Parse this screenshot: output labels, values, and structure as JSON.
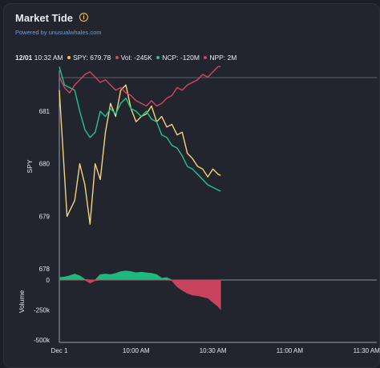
{
  "widget": {
    "title": "Market Tide",
    "subtitle": "Powered by unusualwhales.com"
  },
  "legend": {
    "datetime": "12/01",
    "time": "10:32 AM",
    "spy": "SPY: 679.78",
    "vol": "Vol: -245K",
    "ncp": "NCP: -120M",
    "npp": "NPP: 2M"
  },
  "colors": {
    "spy": "#f5d37a",
    "ncp": "#20c58e",
    "npp": "#d64566",
    "vol_pos": "#1fb97f",
    "vol_neg": "#c94260",
    "spy_dot": "#f5c542",
    "vol_dot": "#d64566"
  },
  "chart_data": {
    "type": "line",
    "xlabel": "",
    "x_ticks": [
      "Dec 1",
      "10:00 AM",
      "10:30 AM",
      "11:00 AM",
      "11:30 AM"
    ],
    "price_panel": {
      "ylabel": "SPY",
      "y_ticks": [
        678,
        679,
        680,
        681
      ],
      "ylim": [
        678,
        681.9
      ],
      "series": [
        {
          "name": "SPY",
          "x_min": [
            0,
            3,
            6,
            8,
            10,
            12,
            14,
            16,
            18,
            20,
            22,
            24,
            26,
            28,
            30,
            32,
            34,
            36,
            38,
            40,
            42,
            44,
            46,
            48,
            50,
            52,
            54,
            56,
            58,
            60,
            62,
            63
          ],
          "values": [
            681.4,
            679.0,
            679.3,
            680.0,
            679.6,
            678.85,
            680.0,
            679.7,
            680.6,
            681.15,
            680.9,
            681.4,
            681.5,
            681.05,
            680.8,
            680.9,
            680.95,
            681.1,
            680.8,
            680.9,
            680.7,
            680.75,
            680.55,
            680.6,
            680.2,
            680.1,
            679.95,
            679.9,
            679.75,
            679.9,
            679.8,
            679.78
          ]
        },
        {
          "name": "NCP",
          "x_min": [
            0,
            2,
            4,
            6,
            8,
            10,
            12,
            14,
            16,
            18,
            20,
            22,
            24,
            26,
            28,
            30,
            32,
            34,
            36,
            38,
            40,
            42,
            44,
            46,
            48,
            50,
            52,
            54,
            56,
            58,
            60,
            62,
            63
          ],
          "values": [
            681.85,
            681.5,
            681.45,
            681.4,
            681.0,
            680.65,
            680.5,
            680.6,
            681.0,
            680.9,
            681.05,
            680.95,
            681.15,
            681.25,
            681.05,
            681.0,
            680.9,
            681.0,
            680.85,
            680.8,
            680.55,
            680.5,
            680.35,
            680.3,
            680.15,
            679.95,
            679.9,
            679.8,
            679.7,
            679.6,
            679.55,
            679.5,
            679.48
          ]
        },
        {
          "name": "NPP",
          "x_min": [
            0,
            2,
            4,
            6,
            8,
            10,
            12,
            14,
            16,
            18,
            20,
            22,
            24,
            26,
            28,
            30,
            32,
            34,
            36,
            38,
            40,
            42,
            44,
            46,
            48,
            50,
            52,
            54,
            56,
            58,
            60,
            62,
            63
          ],
          "values": [
            681.65,
            681.45,
            681.35,
            681.5,
            681.6,
            681.7,
            681.75,
            681.65,
            681.55,
            681.6,
            681.5,
            681.4,
            681.45,
            681.35,
            681.3,
            681.2,
            681.15,
            681.1,
            681.2,
            681.1,
            681.15,
            681.25,
            681.3,
            681.45,
            681.4,
            681.5,
            681.55,
            681.6,
            681.7,
            681.65,
            681.75,
            681.85,
            681.85
          ]
        }
      ]
    },
    "volume_panel": {
      "ylabel": "Volume",
      "y_ticks": [
        0,
        -250000,
        -500000
      ],
      "y_tick_labels": [
        "0",
        "-250k",
        "-500k"
      ],
      "ylim": [
        -500000,
        80000
      ],
      "series": [
        {
          "name": "Vol",
          "x_min": [
            0,
            2,
            4,
            6,
            8,
            10,
            12,
            14,
            16,
            18,
            20,
            22,
            24,
            26,
            28,
            30,
            32,
            34,
            36,
            38,
            40,
            42,
            44,
            46,
            48,
            50,
            52,
            54,
            56,
            58,
            60,
            62,
            63
          ],
          "values": [
            20000,
            25000,
            35000,
            50000,
            35000,
            5000,
            -25000,
            -5000,
            45000,
            50000,
            45000,
            55000,
            70000,
            75000,
            70000,
            60000,
            65000,
            60000,
            55000,
            45000,
            15000,
            20000,
            -5000,
            -55000,
            -85000,
            -110000,
            -125000,
            -130000,
            -140000,
            -150000,
            -185000,
            -220000,
            -245000
          ]
        }
      ]
    },
    "x_range_min": [
      0,
      124
    ],
    "tick_positions_min": [
      0,
      30,
      60,
      90,
      120
    ]
  }
}
